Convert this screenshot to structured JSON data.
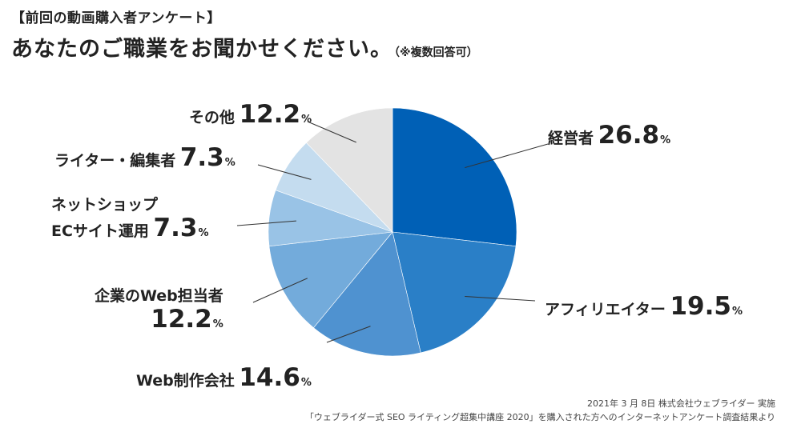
{
  "header": {
    "subtitle": "【前回の動画購入者アンケート】",
    "title": "あなたのご職業をお聞かせください。",
    "note": "（※複数回答可）"
  },
  "chart_data": {
    "type": "pie",
    "title": "あなたのご職業をお聞かせください。",
    "unit": "%",
    "slices": [
      {
        "label": "経営者",
        "value": 26.8,
        "color": "#0060b6"
      },
      {
        "label": "アフィリエイター",
        "value": 19.5,
        "color": "#2a7fc7"
      },
      {
        "label": "Web制作会社",
        "value": 14.6,
        "color": "#4f92d0"
      },
      {
        "label": "企業のWeb担当者",
        "value": 12.2,
        "color": "#73abdb"
      },
      {
        "label": "ネットショップECサイト運用",
        "value": 7.3,
        "color": "#99c3e6"
      },
      {
        "label": "ライター・編集者",
        "value": 7.3,
        "color": "#c4dcef"
      },
      {
        "label": "その他",
        "value": 12.2,
        "color": "#e3e3e3"
      }
    ]
  },
  "labels": {
    "keieisha": {
      "name": "経営者",
      "value": "26.8",
      "unit": "%"
    },
    "affiliate": {
      "name": "アフィリエイター",
      "value": "19.5",
      "unit": "%"
    },
    "webseisaku": {
      "name": "Web制作会社",
      "value": "14.6",
      "unit": "%"
    },
    "kigyo": {
      "name": "企業のWeb担当者",
      "value": "12.2",
      "unit": "%"
    },
    "netshop": {
      "line1": "ネットショップ",
      "line2": "ECサイト運用",
      "value": "7.3",
      "unit": "%"
    },
    "writer": {
      "name": "ライター・編集者",
      "value": "7.3",
      "unit": "%"
    },
    "other": {
      "name": "その他",
      "value": "12.2",
      "unit": "%"
    }
  },
  "footer": {
    "line1": "2021年 3 月 8日 株式会社ウェブライダー 実施",
    "line2": "「ウェブライダー式 SEO ライティング超集中講座 2020」を購入された方へのインターネットアンケート調査結果より"
  }
}
